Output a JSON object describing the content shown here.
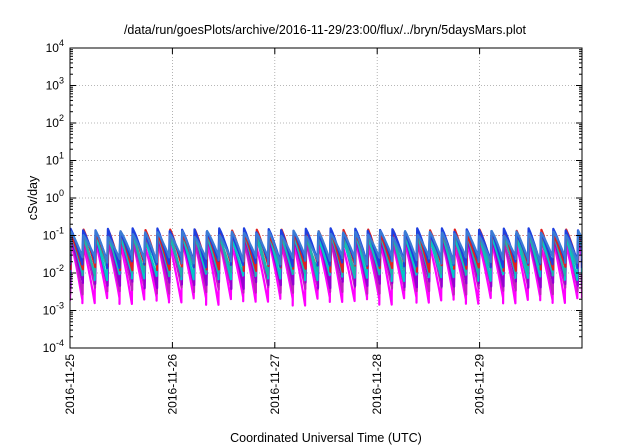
{
  "chart_data": {
    "type": "line",
    "title": "/data/run/goesPlots/archive/2016-11-29/23:00/flux/../bryn/5daysMars.plot",
    "xlabel": "Coordinated Universal Time (UTC)",
    "ylabel": "cSv/day",
    "yscale": "log",
    "ylim": [
      0.0001,
      10000
    ],
    "xlim": [
      "2016-11-25",
      "2016-11-30"
    ],
    "y_ticks": [
      {
        "base": "10",
        "exp": "-4"
      },
      {
        "base": "10",
        "exp": "-3"
      },
      {
        "base": "10",
        "exp": "-2"
      },
      {
        "base": "10",
        "exp": "-1"
      },
      {
        "base": "10",
        "exp": "0"
      },
      {
        "base": "10",
        "exp": "1"
      },
      {
        "base": "10",
        "exp": "2"
      },
      {
        "base": "10",
        "exp": "3"
      },
      {
        "base": "10",
        "exp": "4"
      }
    ],
    "x_ticks": [
      "2016-11-25",
      "2016-11-26",
      "2016-11-27",
      "2016-11-28",
      "2016-11-29"
    ],
    "grid": true,
    "reference_line": {
      "y": 0.1,
      "color": "#e08080"
    },
    "pattern": {
      "period_hours": 2.9,
      "peak_range": [
        0.1,
        0.15
      ],
      "trough_range": [
        0.0015,
        0.02
      ]
    },
    "series": [
      {
        "color": "#ff00ff",
        "peak": 0.06,
        "trough": 0.0018
      },
      {
        "color": "#c020c0",
        "peak": 0.075,
        "trough": 0.0035
      },
      {
        "color": "#9400d3",
        "peak": 0.085,
        "trough": 0.005
      },
      {
        "color": "#00c8c8",
        "peak": 0.09,
        "trough": 0.008
      },
      {
        "color": "#20b2aa",
        "peak": 0.095,
        "trough": 0.011
      },
      {
        "color": "#e02020",
        "peak": 0.12,
        "trough": 0.014
      },
      {
        "color": "#1e3fe0",
        "peak": 0.13,
        "trough": 0.018
      },
      {
        "color": "#3a7bd5",
        "peak": 0.11,
        "trough": 0.022
      }
    ]
  }
}
